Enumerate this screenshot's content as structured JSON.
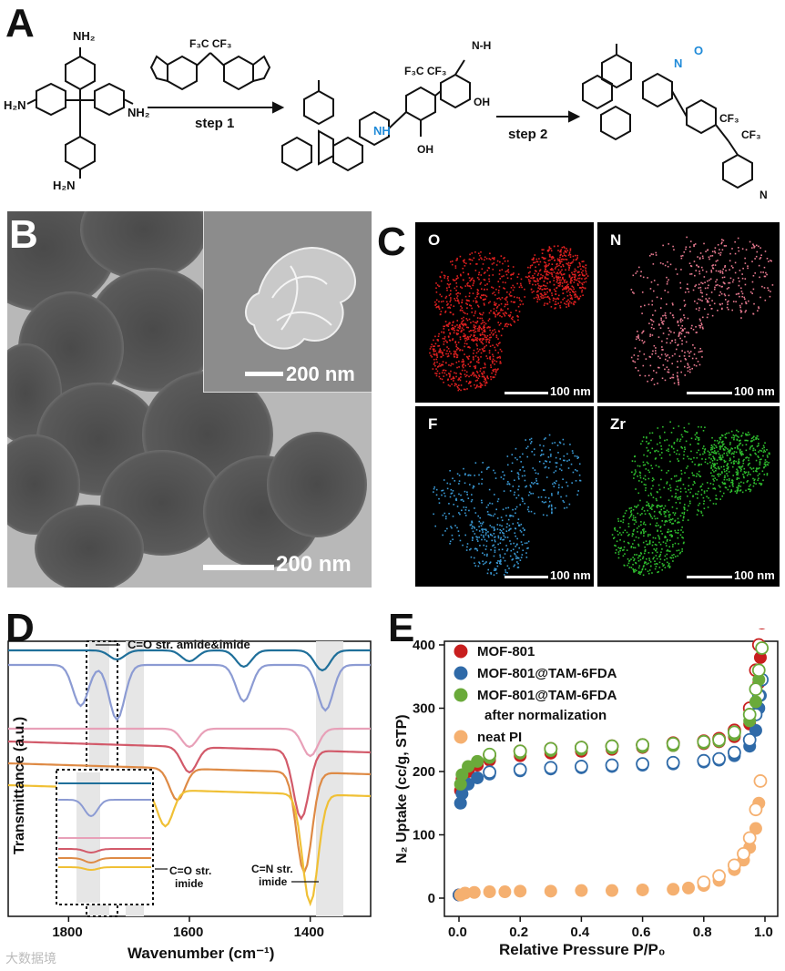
{
  "panels": {
    "a": "A",
    "b": "B",
    "c": "C",
    "d": "D",
    "e": "E"
  },
  "scheme": {
    "monomer_tam_groups": [
      "NH₂",
      "NH₂",
      "NH₂",
      "H₂N",
      "H₂N"
    ],
    "monomer_fda_label": "F₃C  CF₃",
    "step1_label": "step 1",
    "step2_label": "step 2",
    "amide_group": "NH",
    "amide_o": "O",
    "acid_labels": [
      "OH",
      "OH"
    ],
    "intermediate_cf3": "F₃C  CF₃",
    "product_cf3": "CF₃",
    "product_cf3b": "CF₃",
    "n_label": "N",
    "nh_label": "N-H",
    "o_label": "O"
  },
  "micrographs": {
    "tem_scale": "200 nm",
    "sem_inset_scale": "200 nm"
  },
  "eds_maps": [
    {
      "element": "O",
      "scale": "100 nm",
      "color": "#e02020"
    },
    {
      "element": "N",
      "scale": "100 nm",
      "color": "#e87a90"
    },
    {
      "element": "F",
      "scale": "100 nm",
      "color": "#3a9ad6"
    },
    {
      "element": "Zr",
      "scale": "100 nm",
      "color": "#2fbf2f"
    }
  ],
  "chart_data": [
    {
      "type": "line",
      "panel": "D",
      "xlabel": "Wavenumber (cm⁻¹)",
      "ylabel": "Transmittance (a.u.)",
      "x_ticks": [
        1800,
        1600,
        1400
      ],
      "xlim": [
        1900,
        1300
      ],
      "colors": [
        "#1f6f9a",
        "#8c9bd3",
        "#e8a0b8",
        "#d25a6a",
        "#de8a45",
        "#f0c035"
      ],
      "annotations": [
        "C=O str. amide&imide",
        "C=O str. imide",
        "C=N str. imide"
      ]
    },
    {
      "type": "scatter",
      "panel": "E",
      "xlabel": "Relative Pressure P/P₀",
      "ylabel": "N₂ Uptake (cc/g, STP)",
      "xlim": [
        0.0,
        1.0
      ],
      "ylim": [
        0,
        450
      ],
      "x_ticks": [
        0.0,
        0.2,
        0.4,
        0.6,
        0.8,
        1.0
      ],
      "y_ticks": [
        0,
        100,
        200,
        300,
        400
      ],
      "legend_placement": "top-left",
      "series": [
        {
          "name": "MOF-801",
          "color": "#c81e1e",
          "adsorption": [
            [
              0.0,
              5
            ],
            [
              0.005,
              170
            ],
            [
              0.01,
              188
            ],
            [
              0.03,
              200
            ],
            [
              0.06,
              210
            ],
            [
              0.1,
              218
            ],
            [
              0.2,
              225
            ],
            [
              0.3,
              229
            ],
            [
              0.4,
              232
            ],
            [
              0.5,
              235
            ],
            [
              0.6,
              238
            ],
            [
              0.7,
              241
            ],
            [
              0.8,
              244
            ],
            [
              0.85,
              247
            ],
            [
              0.9,
              255
            ],
            [
              0.95,
              275
            ],
            [
              0.97,
              300
            ],
            [
              0.98,
              340
            ],
            [
              0.985,
              380
            ],
            [
              0.99,
              435
            ]
          ],
          "desorption": [
            [
              0.99,
              435
            ],
            [
              0.98,
              400
            ],
            [
              0.97,
              360
            ],
            [
              0.95,
              300
            ],
            [
              0.9,
              265
            ],
            [
              0.85,
              252
            ],
            [
              0.8,
              248
            ],
            [
              0.7,
              245
            ],
            [
              0.6,
              242
            ],
            [
              0.5,
              240
            ],
            [
              0.4,
              238
            ],
            [
              0.3,
              236
            ],
            [
              0.2,
              232
            ],
            [
              0.1,
              226
            ]
          ]
        },
        {
          "name": "MOF-801@TAM-6FDA",
          "color": "#2f6aa8",
          "adsorption": [
            [
              0.0,
              5
            ],
            [
              0.005,
              150
            ],
            [
              0.01,
              165
            ],
            [
              0.03,
              180
            ],
            [
              0.06,
              190
            ],
            [
              0.1,
              196
            ],
            [
              0.2,
              201
            ],
            [
              0.3,
              204
            ],
            [
              0.4,
              206
            ],
            [
              0.5,
              208
            ],
            [
              0.6,
              210
            ],
            [
              0.7,
              212
            ],
            [
              0.8,
              215
            ],
            [
              0.85,
              218
            ],
            [
              0.9,
              225
            ],
            [
              0.95,
              240
            ],
            [
              0.97,
              265
            ],
            [
              0.98,
              300
            ],
            [
              0.985,
              320
            ],
            [
              0.99,
              345
            ]
          ],
          "desorption": [
            [
              0.99,
              345
            ],
            [
              0.98,
              320
            ],
            [
              0.97,
              290
            ],
            [
              0.95,
              250
            ],
            [
              0.9,
              230
            ],
            [
              0.85,
              220
            ],
            [
              0.8,
              217
            ],
            [
              0.7,
              214
            ],
            [
              0.6,
              212
            ],
            [
              0.5,
              210
            ],
            [
              0.4,
              208
            ],
            [
              0.3,
              206
            ],
            [
              0.2,
              203
            ],
            [
              0.1,
              199
            ]
          ]
        },
        {
          "name": "MOF-801@TAM-6FDA after normalization",
          "color": "#6aaa3a",
          "adsorption": [
            [
              0.005,
              180
            ],
            [
              0.01,
              195
            ],
            [
              0.03,
              208
            ],
            [
              0.06,
              216
            ],
            [
              0.1,
              222
            ],
            [
              0.2,
              229
            ],
            [
              0.3,
              233
            ],
            [
              0.4,
              235
            ],
            [
              0.5,
              237
            ],
            [
              0.6,
              239
            ],
            [
              0.7,
              241
            ],
            [
              0.8,
              245
            ],
            [
              0.85,
              248
            ],
            [
              0.9,
              258
            ],
            [
              0.95,
              280
            ],
            [
              0.97,
              310
            ],
            [
              0.98,
              345
            ],
            [
              0.99,
              395
            ]
          ],
          "desorption": [
            [
              0.99,
              395
            ],
            [
              0.98,
              360
            ],
            [
              0.97,
              330
            ],
            [
              0.95,
              290
            ],
            [
              0.9,
              262
            ],
            [
              0.85,
              250
            ],
            [
              0.8,
              247
            ],
            [
              0.7,
              244
            ],
            [
              0.6,
              242
            ],
            [
              0.5,
              240
            ],
            [
              0.4,
              238
            ],
            [
              0.3,
              236
            ],
            [
              0.2,
              232
            ],
            [
              0.1,
              227
            ]
          ]
        },
        {
          "name": "neat PI",
          "color": "#f5b070",
          "adsorption": [
            [
              0.005,
              5
            ],
            [
              0.02,
              8
            ],
            [
              0.05,
              9
            ],
            [
              0.1,
              10
            ],
            [
              0.15,
              10
            ],
            [
              0.2,
              11
            ],
            [
              0.3,
              11
            ],
            [
              0.4,
              12
            ],
            [
              0.5,
              12
            ],
            [
              0.6,
              13
            ],
            [
              0.7,
              14
            ],
            [
              0.75,
              16
            ],
            [
              0.8,
              20
            ],
            [
              0.85,
              28
            ],
            [
              0.9,
              45
            ],
            [
              0.93,
              60
            ],
            [
              0.95,
              80
            ],
            [
              0.97,
              110
            ],
            [
              0.98,
              150
            ],
            [
              0.985,
              185
            ]
          ],
          "desorption": [
            [
              0.985,
              185
            ],
            [
              0.97,
              140
            ],
            [
              0.95,
              95
            ],
            [
              0.93,
              70
            ],
            [
              0.9,
              52
            ],
            [
              0.85,
              35
            ],
            [
              0.8,
              25
            ]
          ]
        }
      ]
    }
  ],
  "watermark": "大数据境"
}
